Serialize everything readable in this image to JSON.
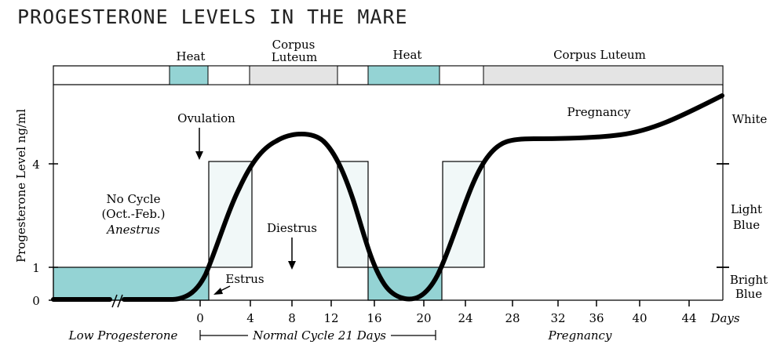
{
  "title": "PROGESTERONE LEVELS IN THE MARE",
  "colors": {
    "bright_blue": "#94d3d4",
    "light_blue": "#f1f8f8",
    "grey": "#e4e4e4",
    "curve": "#000000"
  },
  "phase_bar": {
    "heat_1": "Heat",
    "corpus_luteum_1_line1": "Corpus",
    "corpus_luteum_1_line2": "Luteum",
    "heat_2": "Heat",
    "corpus_luteum_2": "Corpus Luteum"
  },
  "y_axis": {
    "label": "Progesterone Level ng/ml",
    "ticks": [
      "0",
      "1",
      "4"
    ]
  },
  "right_axis": {
    "white": "White",
    "light_blue_line1": "Light",
    "light_blue_line2": "Blue",
    "bright_blue_line1": "Bright",
    "bright_blue_line2": "Blue"
  },
  "x_axis": {
    "ticks": [
      "0",
      "4",
      "8",
      "12",
      "16",
      "20",
      "24",
      "28",
      "32",
      "36",
      "40",
      "44"
    ],
    "unit": "Days"
  },
  "annotations": {
    "ovulation": "Ovulation",
    "no_cycle": "No Cycle",
    "no_cycle_months": "(Oct.-Feb.)",
    "anestrus": "Anestrus",
    "diestrus": "Diestrus",
    "estrus": "Estrus",
    "pregnancy": "Pregnancy"
  },
  "bottom_labels": {
    "low_progesterone": "Low Progesterone",
    "normal_cycle": "Normal Cycle 21 Days",
    "pregnancy": "Pregnancy"
  }
}
